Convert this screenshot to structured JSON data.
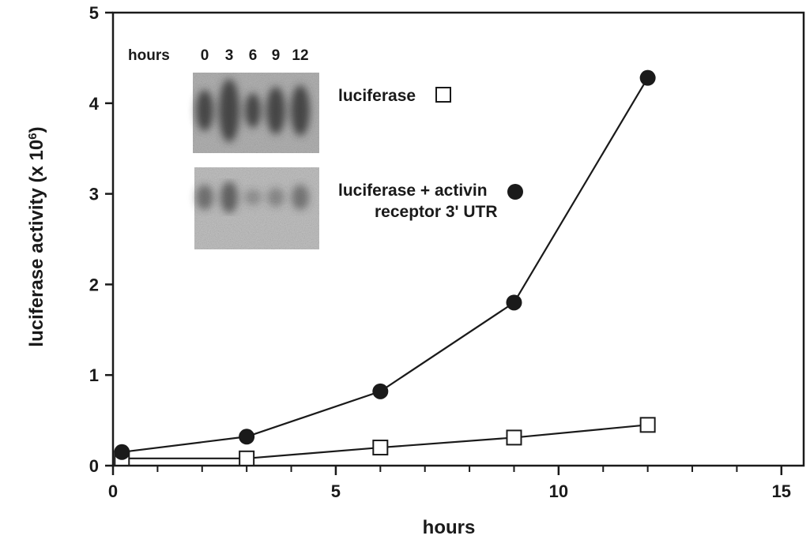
{
  "chart_data": {
    "type": "line",
    "title": "",
    "xlabel": "hours",
    "ylabel_main": "luciferase activity (x 10",
    "ylabel_exp": "6",
    "ylabel_close": ")",
    "xlim": [
      0,
      15.5
    ],
    "ylim": [
      0,
      5
    ],
    "xticks": [
      0,
      5,
      10,
      15
    ],
    "xticks_minor": [
      1,
      2,
      3,
      4,
      6,
      7,
      8,
      9,
      11,
      12,
      13,
      14
    ],
    "yticks": [
      0,
      1,
      2,
      3,
      4,
      5
    ],
    "grid": false,
    "series": [
      {
        "name": "luciferase",
        "marker": "open-square",
        "x": [
          0.2,
          3,
          6,
          9,
          12
        ],
        "y": [
          0.08,
          0.08,
          0.2,
          0.31,
          0.45
        ]
      },
      {
        "name": "luciferase + activin receptor 3' UTR",
        "marker": "filled-circle",
        "x": [
          0.2,
          3,
          6,
          9,
          12
        ],
        "y": [
          0.15,
          0.32,
          0.82,
          1.8,
          4.28
        ]
      }
    ],
    "legend": {
      "placement": "upper-center",
      "entries": [
        {
          "lines": [
            "luciferase"
          ],
          "marker": "open-square"
        },
        {
          "lines": [
            "luciferase + activin",
            "receptor 3' UTR"
          ],
          "marker": "filled-circle"
        }
      ]
    },
    "inset": {
      "description_type": "northern-blot",
      "row_label": "hours",
      "lane_labels": [
        "0",
        "3",
        "6",
        "9",
        "12"
      ]
    }
  },
  "colors": {
    "ink": "#1a1a1a",
    "background": "#ffffff",
    "blot_bg": "#b4b4b4",
    "blot_band": "#3a3a3a"
  }
}
